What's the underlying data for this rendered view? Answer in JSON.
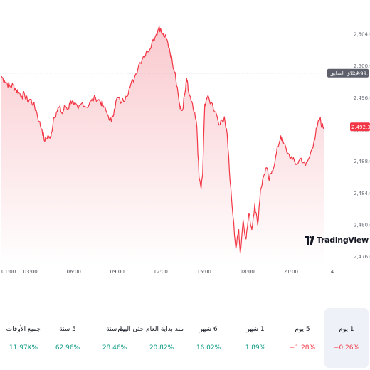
{
  "chart_data": {
    "type": "area",
    "y_ticks": [
      "2,504.00",
      "2,500.00",
      "2,496.00",
      "2,492.00",
      "2,488.00",
      "2,484.00",
      "2,480.00",
      "2,476.00"
    ],
    "y_tick_values": [
      2504,
      2500,
      2496,
      2492,
      2488,
      2484,
      2480,
      2476
    ],
    "ylim": [
      2475.6,
      2505.8
    ],
    "x_ticks": [
      "01:00",
      "03:00",
      "06:00",
      "09:00",
      "12:00",
      "15:00",
      "18:00",
      "21:00",
      "4"
    ],
    "x_tick_hours": [
      1,
      3,
      6,
      9,
      12,
      15,
      18,
      21,
      24
    ],
    "xlim_hours": [
      1,
      24.4
    ],
    "previous_close": {
      "label": "الإغلاق السابق",
      "value": "2,499.10",
      "y": 2499.1
    },
    "last_price": {
      "label": "2,492.33",
      "y": 2492.33
    },
    "series": [
      {
        "color": "#f23645",
        "points": [
          [
            1.0,
            2498.7
          ],
          [
            1.2,
            2498.2
          ],
          [
            1.4,
            2497.8
          ],
          [
            1.6,
            2497.4
          ],
          [
            1.8,
            2497.6
          ],
          [
            2.0,
            2497.0
          ],
          [
            2.2,
            2496.7
          ],
          [
            2.4,
            2496.2
          ],
          [
            2.6,
            2496.4
          ],
          [
            2.8,
            2495.6
          ],
          [
            3.0,
            2495.8
          ],
          [
            3.2,
            2495.2
          ],
          [
            3.4,
            2494.4
          ],
          [
            3.6,
            2493.0
          ],
          [
            3.8,
            2492.0
          ],
          [
            4.0,
            2490.5
          ],
          [
            4.2,
            2491.2
          ],
          [
            4.4,
            2490.8
          ],
          [
            4.6,
            2493.4
          ],
          [
            4.8,
            2494.2
          ],
          [
            5.0,
            2494.8
          ],
          [
            5.2,
            2494.0
          ],
          [
            5.4,
            2495.0
          ],
          [
            5.6,
            2494.6
          ],
          [
            5.8,
            2495.6
          ],
          [
            6.0,
            2495.1
          ],
          [
            6.3,
            2494.6
          ],
          [
            6.6,
            2495.4
          ],
          [
            6.9,
            2494.8
          ],
          [
            7.2,
            2495.6
          ],
          [
            7.5,
            2496.0
          ],
          [
            7.8,
            2495.6
          ],
          [
            8.0,
            2495.1
          ],
          [
            8.3,
            2494.0
          ],
          [
            8.6,
            2493.0
          ],
          [
            8.8,
            2494.6
          ],
          [
            9.0,
            2496.0
          ],
          [
            9.3,
            2495.4
          ],
          [
            9.6,
            2496.2
          ],
          [
            9.9,
            2497.4
          ],
          [
            10.2,
            2498.6
          ],
          [
            10.5,
            2500.2
          ],
          [
            10.8,
            2501.2
          ],
          [
            11.1,
            2501.8
          ],
          [
            11.4,
            2503.0
          ],
          [
            11.7,
            2504.0
          ],
          [
            11.9,
            2505.0
          ],
          [
            12.1,
            2504.0
          ],
          [
            12.4,
            2503.4
          ],
          [
            12.6,
            2502.2
          ],
          [
            12.8,
            2500.6
          ],
          [
            13.0,
            2499.2
          ],
          [
            13.2,
            2496.6
          ],
          [
            13.35,
            2494.6
          ],
          [
            13.5,
            2494.4
          ],
          [
            13.7,
            2496.8
          ],
          [
            13.8,
            2498.4
          ],
          [
            13.9,
            2497.0
          ],
          [
            14.1,
            2495.6
          ],
          [
            14.3,
            2494.2
          ],
          [
            14.5,
            2492.4
          ],
          [
            14.65,
            2486.0
          ],
          [
            14.8,
            2484.6
          ],
          [
            14.9,
            2486.4
          ],
          [
            15.05,
            2495.2
          ],
          [
            15.2,
            2496.0
          ],
          [
            15.5,
            2495.4
          ],
          [
            15.8,
            2494.2
          ],
          [
            16.1,
            2492.6
          ],
          [
            16.4,
            2493.6
          ],
          [
            16.6,
            2491.4
          ],
          [
            16.8,
            2485.4
          ],
          [
            17.0,
            2481.0
          ],
          [
            17.2,
            2477.0
          ],
          [
            17.4,
            2479.4
          ],
          [
            17.5,
            2476.4
          ],
          [
            17.7,
            2480.6
          ],
          [
            17.9,
            2478.2
          ],
          [
            18.1,
            2481.4
          ],
          [
            18.3,
            2479.4
          ],
          [
            18.5,
            2482.6
          ],
          [
            18.7,
            2480.0
          ],
          [
            18.9,
            2484.4
          ],
          [
            19.1,
            2486.0
          ],
          [
            19.3,
            2487.2
          ],
          [
            19.5,
            2485.6
          ],
          [
            19.7,
            2486.8
          ],
          [
            19.9,
            2488.0
          ],
          [
            20.1,
            2489.8
          ],
          [
            20.3,
            2491.2
          ],
          [
            20.5,
            2490.2
          ],
          [
            20.8,
            2489.0
          ],
          [
            21.1,
            2488.2
          ],
          [
            21.4,
            2487.6
          ],
          [
            21.7,
            2488.4
          ],
          [
            22.0,
            2487.4
          ],
          [
            22.3,
            2488.6
          ],
          [
            22.6,
            2490.6
          ],
          [
            22.8,
            2492.2
          ],
          [
            23.0,
            2493.4
          ],
          [
            23.15,
            2492.4
          ],
          [
            23.3,
            2492.33
          ]
        ]
      }
    ],
    "grid": false
  },
  "watermark": {
    "text": "TradingView"
  },
  "periods": [
    {
      "label": "1 يوم",
      "value": "−0.26%",
      "trend": "neg",
      "active": true
    },
    {
      "label": "5 يوم",
      "value": "−1.28%",
      "trend": "neg",
      "active": false
    },
    {
      "label": "1 شهر",
      "value": "1.89%",
      "trend": "pos",
      "active": false
    },
    {
      "label": "6 شهر",
      "value": "16.02%",
      "trend": "pos",
      "active": false
    },
    {
      "label": "منذ بداية العام حتى اليوم",
      "value": "20.82%",
      "trend": "pos",
      "active": false
    },
    {
      "label": "1 سنة",
      "value": "28.46%",
      "trend": "pos",
      "active": false
    },
    {
      "label": "5 سنة",
      "value": "62.96%",
      "trend": "pos",
      "active": false
    },
    {
      "label": "جميع الأوقات",
      "value": "11.97K%",
      "trend": "pos",
      "active": false
    }
  ],
  "colors": {
    "line": "#f23645",
    "fill_top": "#f9c7cc",
    "fill_bottom": "#ffffff",
    "badge_prev": "#5d606b",
    "badge_last": "#f23645",
    "positive": "#089981",
    "negative": "#f23645",
    "active_tab": "#eef1f7"
  }
}
